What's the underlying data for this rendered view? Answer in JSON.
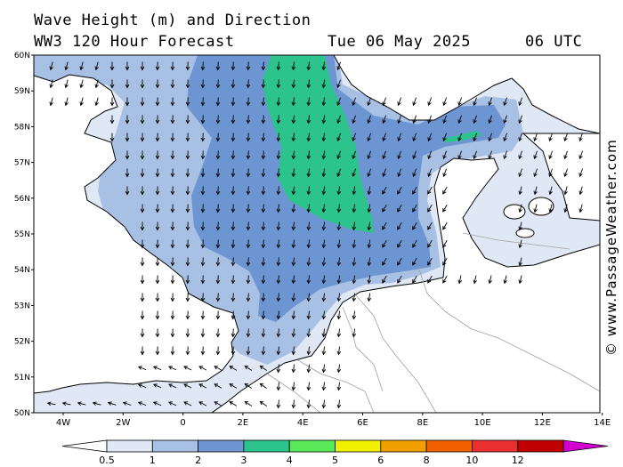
{
  "header": {
    "title": "Wave Height (m) and Direction",
    "subtitle": "WW3 120 Hour Forecast",
    "date": "Tue 06 May 2025",
    "time": "06 UTC"
  },
  "credit": "© www.PassageWeather.com",
  "map": {
    "lat_labels": [
      "60N",
      "59N",
      "58N",
      "57N",
      "56N",
      "55N",
      "54N",
      "53N",
      "52N",
      "51N",
      "50N"
    ],
    "lon_labels": [
      "4W",
      "2W",
      "0",
      "2E",
      "4E",
      "6E",
      "8E",
      "10E",
      "12E",
      "14E"
    ],
    "colors": {
      "land": "#ffffff",
      "band_0_5_1": "#e0e8f6",
      "band_1_2": "#a8c0e4",
      "band_2_3": "#6c95d2",
      "band_3_4": "#2cc48c",
      "band_4_5": "#58e858",
      "coast": "#000000",
      "border": "#a0a0a0"
    }
  },
  "colorbar": {
    "labels": [
      "0.5",
      "1",
      "2",
      "3",
      "4",
      "5",
      "6",
      "8",
      "10",
      "12"
    ],
    "colors": [
      "#e0e8f6",
      "#a8c0e4",
      "#6c95d2",
      "#2cc48c",
      "#58e858",
      "#f0f000",
      "#f0a000",
      "#f06000",
      "#e83030",
      "#c00000",
      "#d000d0"
    ]
  }
}
